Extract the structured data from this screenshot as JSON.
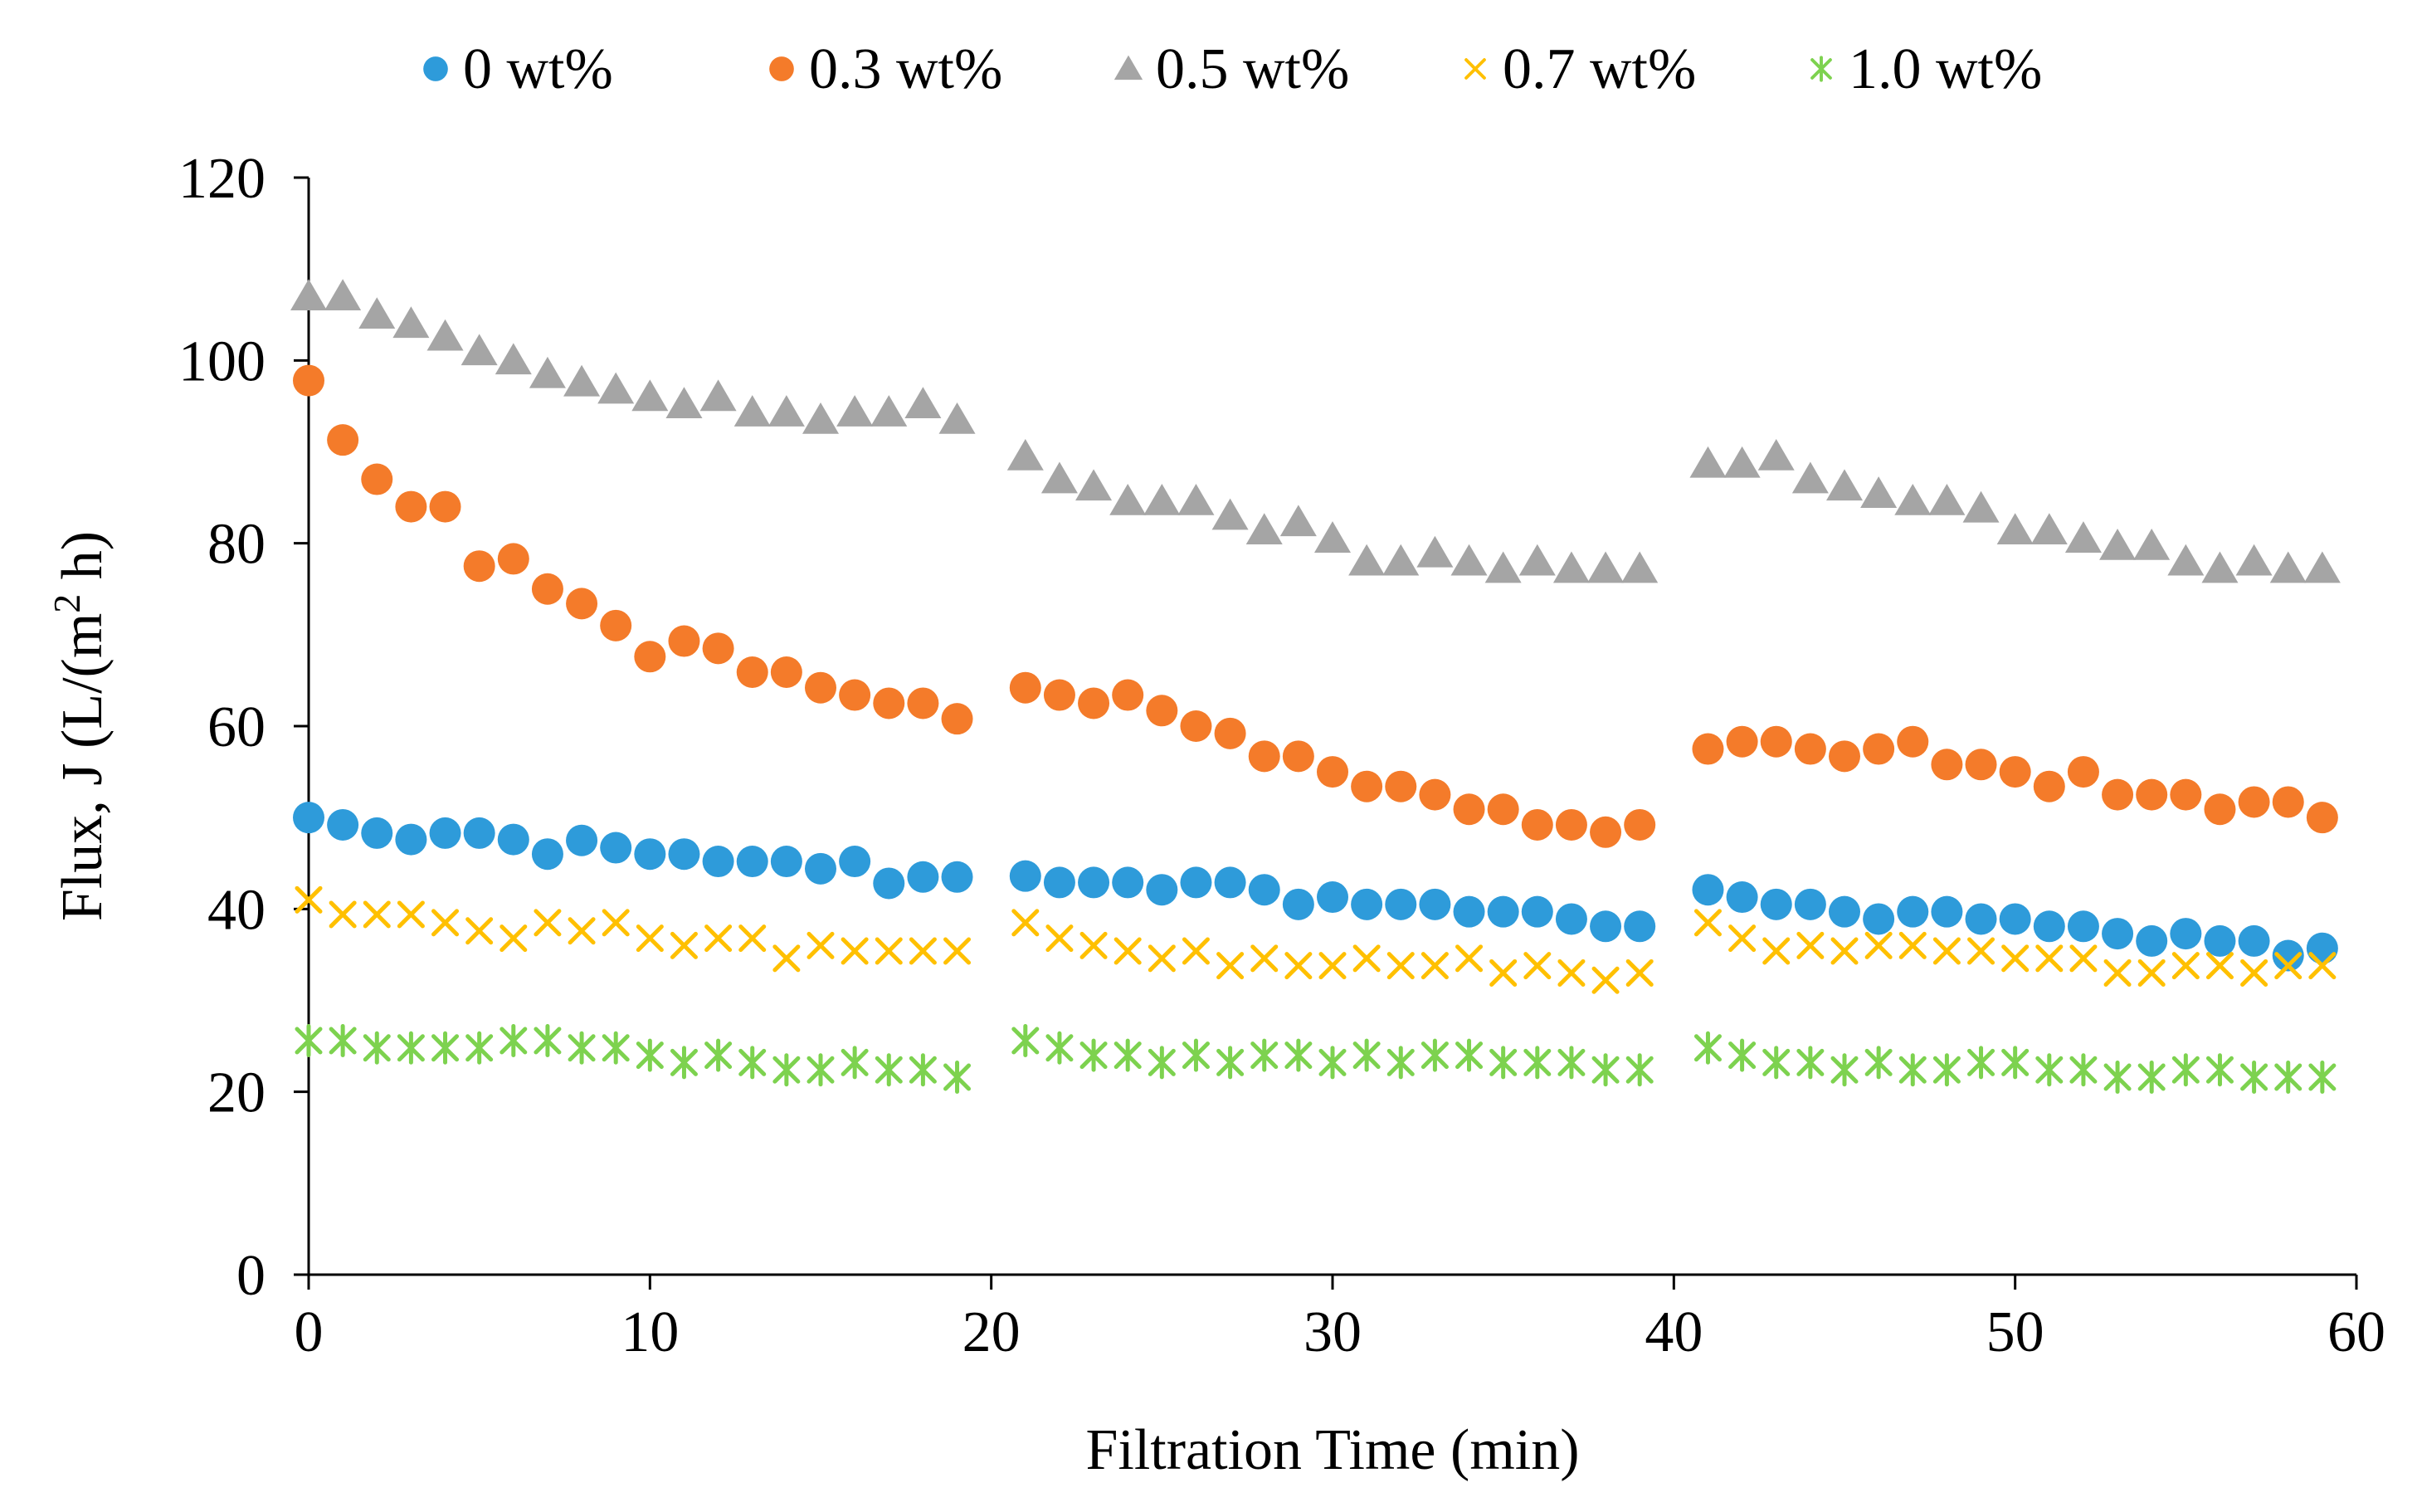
{
  "chart_data": {
    "type": "scatter",
    "title": "",
    "xlabel": "Filtration Time (min)",
    "ylabel_parts": {
      "pre": "Flux, J (L/(m",
      "sup": "2",
      "post": " h)"
    },
    "xlim": [
      0,
      60
    ],
    "ylim": [
      0,
      120
    ],
    "xticks": [
      0,
      10,
      20,
      30,
      40,
      50,
      60
    ],
    "yticks": [
      0,
      20,
      40,
      60,
      80,
      100,
      120
    ],
    "legend_position": "top",
    "x": [
      0,
      1,
      2,
      3,
      4,
      5,
      6,
      7,
      8,
      9,
      10,
      11,
      12,
      13,
      14,
      15,
      16,
      17,
      18,
      19,
      21,
      22,
      23,
      24,
      25,
      26,
      27,
      28,
      29,
      30,
      31,
      32,
      33,
      34,
      35,
      36,
      37,
      38,
      39,
      41,
      42,
      43,
      44,
      45,
      46,
      47,
      48,
      49,
      50,
      51,
      52,
      53,
      54,
      55,
      56,
      57,
      58,
      59
    ],
    "series": [
      {
        "name": "0 wt%",
        "marker": "circle",
        "color": "#2E9BDA",
        "values": [
          50,
          49.2,
          48.3,
          47.6,
          48.3,
          48.3,
          47.6,
          46,
          47.5,
          46.7,
          46,
          46,
          45.2,
          45.2,
          45.2,
          44.4,
          45.2,
          42.8,
          43.5,
          43.5,
          43.6,
          42.9,
          42.9,
          42.9,
          42.1,
          42.9,
          42.9,
          42.1,
          40.5,
          41.3,
          40.5,
          40.5,
          40.5,
          39.7,
          39.7,
          39.7,
          38.9,
          38.1,
          38.1,
          42.1,
          41.3,
          40.5,
          40.5,
          39.7,
          38.9,
          39.7,
          39.7,
          38.9,
          38.9,
          38.1,
          38.1,
          37.3,
          36.5,
          37.3,
          36.5,
          36.5,
          34.9,
          35.7
        ]
      },
      {
        "name": "0.3 wt%",
        "marker": "circle",
        "color": "#F47B2A",
        "values": [
          97.8,
          91.3,
          87,
          84,
          84,
          77.5,
          78.3,
          75,
          73.4,
          71,
          67.6,
          69.3,
          68.5,
          65.9,
          65.9,
          64.2,
          63.4,
          62.5,
          62.5,
          60.8,
          64.2,
          63.4,
          62.5,
          63.4,
          61.7,
          60,
          59.2,
          56.7,
          56.7,
          55,
          53.4,
          53.4,
          52.5,
          50.9,
          50.9,
          49.2,
          49.2,
          48.4,
          49.2,
          57.5,
          58.3,
          58.3,
          57.5,
          56.7,
          57.5,
          58.3,
          55.8,
          55.8,
          55,
          53.4,
          55,
          52.5,
          52.5,
          52.5,
          50.9,
          51.7,
          51.7,
          50
        ]
      },
      {
        "name": "0.5 wt%",
        "marker": "triangle",
        "color": "#A5A5A5",
        "values": [
          107,
          107,
          105,
          104,
          102.6,
          101,
          100,
          98.5,
          97.6,
          96.8,
          96,
          95.2,
          96,
          94.3,
          94.3,
          93.5,
          94.3,
          94.3,
          95.2,
          93.5,
          89.5,
          87,
          86.2,
          84.6,
          84.6,
          84.6,
          83,
          81.4,
          82.3,
          80.5,
          78,
          78,
          78.9,
          78,
          77.2,
          78,
          77.2,
          77.2,
          77.2,
          88.7,
          88.7,
          89.5,
          87,
          86.2,
          85.4,
          84.6,
          84.6,
          83.8,
          81.4,
          81.4,
          80.5,
          79.7,
          79.7,
          78,
          77.2,
          78,
          77.2,
          77.2
        ]
      },
      {
        "name": "0.7 wt%",
        "marker": "x",
        "color": "#FFC000",
        "values": [
          41,
          39.4,
          39.4,
          39.4,
          38.5,
          37.6,
          36.8,
          38.5,
          37.6,
          38.5,
          36.8,
          36,
          36.8,
          36.8,
          34.6,
          36,
          35.4,
          35.4,
          35.4,
          35.4,
          38.5,
          36.8,
          36,
          35.4,
          34.6,
          35.4,
          33.8,
          34.6,
          33.8,
          33.8,
          34.6,
          33.8,
          33.8,
          34.6,
          33,
          33.8,
          33,
          32.2,
          33,
          38.5,
          36.8,
          35.4,
          36,
          35.4,
          36,
          36,
          35.4,
          35.4,
          34.6,
          34.6,
          34.6,
          33,
          33,
          33.8,
          33.8,
          33,
          33.8,
          33.8
        ]
      },
      {
        "name": "1.0 wt%",
        "marker": "asterisk",
        "color": "#7DD24F",
        "values": [
          25.6,
          25.6,
          24.8,
          24.8,
          24.8,
          24.8,
          25.6,
          25.6,
          24.8,
          24.8,
          24,
          23.2,
          24,
          23.2,
          22.4,
          22.4,
          23.2,
          22.4,
          22.4,
          21.6,
          25.6,
          24.8,
          24,
          24,
          23.2,
          24,
          23.2,
          24,
          24,
          23.2,
          24,
          23.2,
          24,
          24,
          23.2,
          23.2,
          23.2,
          22.4,
          22.4,
          24.8,
          24,
          23.2,
          23.2,
          22.4,
          23.2,
          22.4,
          22.4,
          23.2,
          23.2,
          22.4,
          22.4,
          21.6,
          21.6,
          22.4,
          22.4,
          21.6,
          21.6,
          21.6
        ]
      }
    ]
  }
}
